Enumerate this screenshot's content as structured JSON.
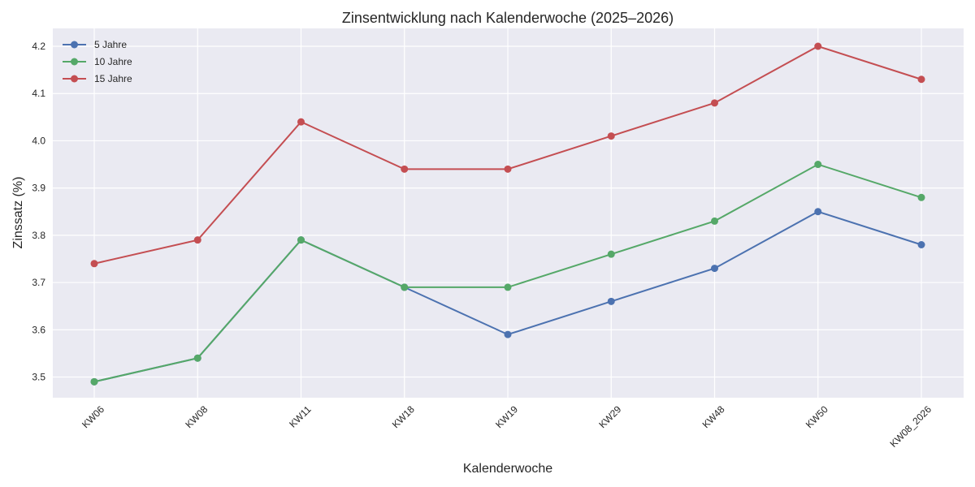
{
  "chart_data": {
    "type": "line",
    "title": "Zinsentwicklung nach Kalenderwoche (2025–2026)",
    "xlabel": "Kalenderwoche",
    "ylabel": "Zinssatz (%)",
    "categories": [
      "KW06",
      "KW08",
      "KW11",
      "KW18",
      "KW19",
      "KW29",
      "KW48",
      "KW50",
      "KW08_2026"
    ],
    "series": [
      {
        "name": "5 Jahre",
        "color": "#4c72b0",
        "values": [
          3.49,
          3.54,
          3.79,
          3.69,
          3.59,
          3.66,
          3.73,
          3.85,
          3.78
        ]
      },
      {
        "name": "10 Jahre",
        "color": "#55a868",
        "values": [
          3.49,
          3.54,
          3.79,
          3.69,
          3.69,
          3.76,
          3.83,
          3.95,
          3.88
        ]
      },
      {
        "name": "15 Jahre",
        "color": "#c44e52",
        "values": [
          3.74,
          3.79,
          4.04,
          3.94,
          3.94,
          4.01,
          4.08,
          4.2,
          4.13
        ]
      }
    ],
    "yticks": [
      3.5,
      3.6,
      3.7,
      3.8,
      3.9,
      4.0,
      4.1,
      4.2
    ],
    "ytick_labels": [
      "3.5",
      "3.6",
      "3.7",
      "3.8",
      "3.9",
      "4.0",
      "4.1",
      "4.2"
    ],
    "ylim": [
      3.455,
      4.235
    ],
    "grid": true,
    "legend_position": "upper left",
    "background_color": "#eaeaf2",
    "x_tick_rotation": 45
  }
}
